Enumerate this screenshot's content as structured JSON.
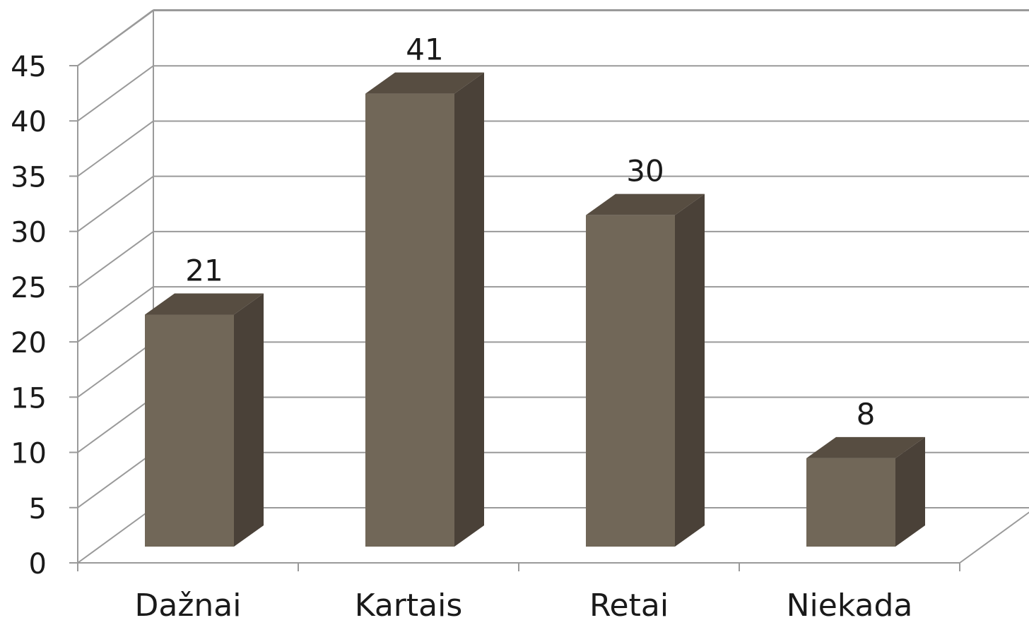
{
  "chart_data": {
    "type": "bar",
    "style": "3d-column",
    "categories": [
      "Dažnai",
      "Kartais",
      "Retai",
      "Niekada"
    ],
    "values": [
      21,
      41,
      30,
      8
    ],
    "data_labels": [
      "21",
      "41",
      "30",
      "8"
    ],
    "ylim": [
      0,
      45
    ],
    "yticks": [
      0,
      5,
      10,
      15,
      20,
      25,
      30,
      35,
      40,
      45
    ],
    "ytick_labels": [
      "0",
      "5",
      "10",
      "15",
      "20",
      "25",
      "30",
      "35",
      "40",
      "45"
    ],
    "grid": true,
    "legend": "none",
    "title": "",
    "xlabel": "",
    "ylabel": "",
    "colors": {
      "bar_front": "#716758",
      "bar_top": "#574d41",
      "bar_side": "#4a4138",
      "grid": "#9a9a9a",
      "text": "#1a1a1a"
    }
  }
}
